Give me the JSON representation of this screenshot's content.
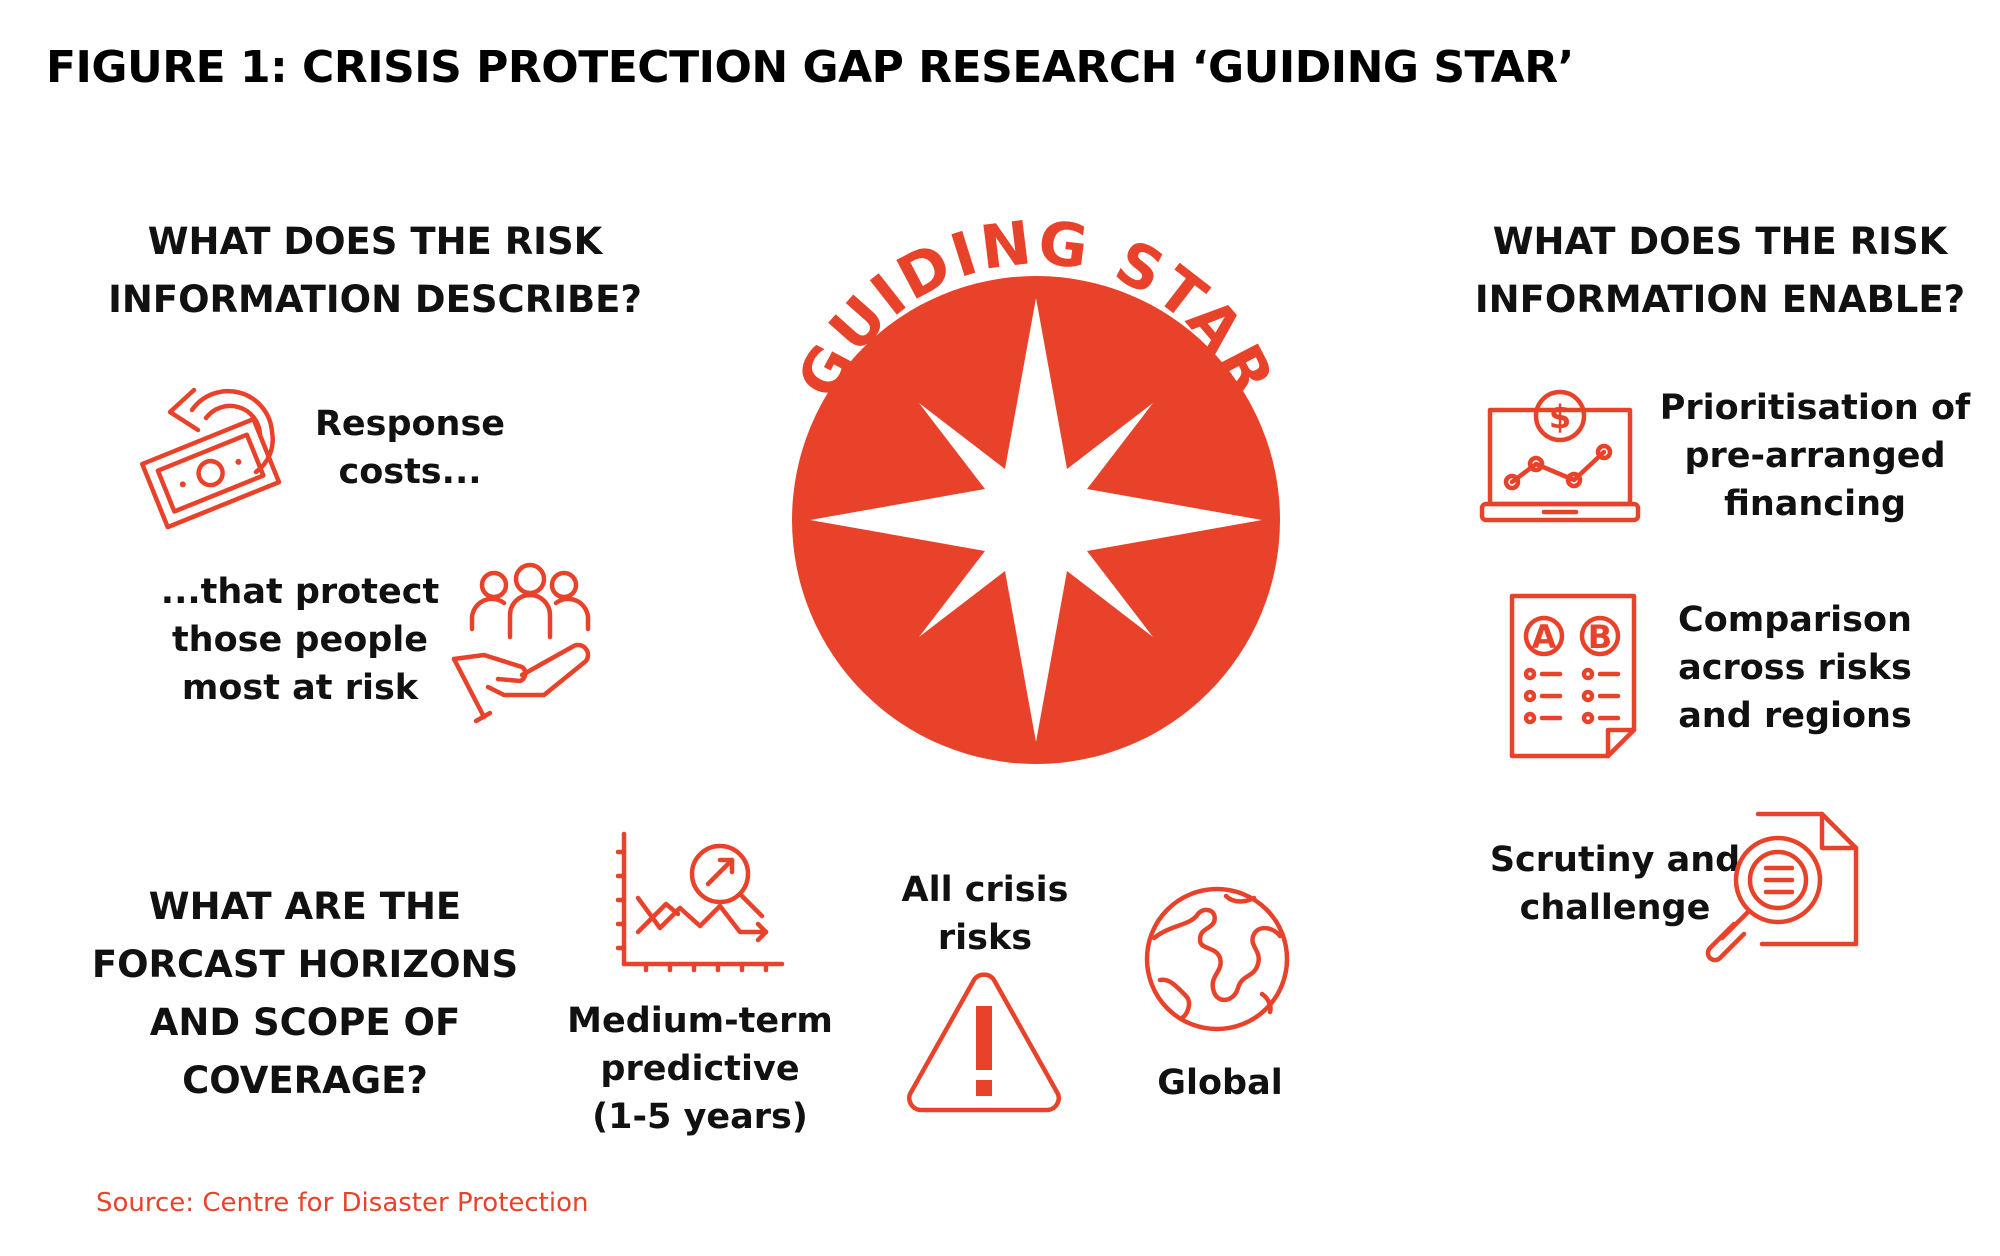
{
  "figure_title": "FIGURE 1: CRISIS PROTECTION GAP RESEARCH ‘GUIDING STAR’",
  "center": {
    "arc_text": "GUIDING STAR",
    "star_icon": "compass-star-icon"
  },
  "colors": {
    "accent": "#E8432A",
    "text": "#111111",
    "background": "#ffffff"
  },
  "left_section": {
    "heading": "WHAT DOES THE RISK\nINFORMATION DESCRIBE?",
    "items": [
      {
        "icon": "money-return-icon",
        "label": "Response\ncosts..."
      },
      {
        "icon": "people-in-hand-icon",
        "label": "...that protect\nthose people\nmost at risk"
      }
    ]
  },
  "right_section": {
    "heading": "WHAT DOES THE RISK\nINFORMATION ENABLE?",
    "items": [
      {
        "icon": "laptop-finance-chart-icon",
        "label": "Prioritisation of\npre-arranged\nfinancing"
      },
      {
        "icon": "ab-comparison-document-icon",
        "label": "Comparison\nacross risks\nand regions"
      },
      {
        "icon": "document-magnifier-icon",
        "label": "Scrutiny and\nchallenge"
      }
    ]
  },
  "bottom_section": {
    "heading": "WHAT ARE THE\nFORCAST HORIZONS\nAND SCOPE OF\nCOVERAGE?",
    "items": [
      {
        "icon": "trend-chart-magnifier-icon",
        "label": "Medium-term\npredictive\n(1-5 years)"
      },
      {
        "icon": "warning-triangle-icon",
        "label": "All crisis\nrisks"
      },
      {
        "icon": "globe-icon",
        "label": "Global"
      }
    ]
  },
  "source": "Source: Centre for Disaster Protection"
}
